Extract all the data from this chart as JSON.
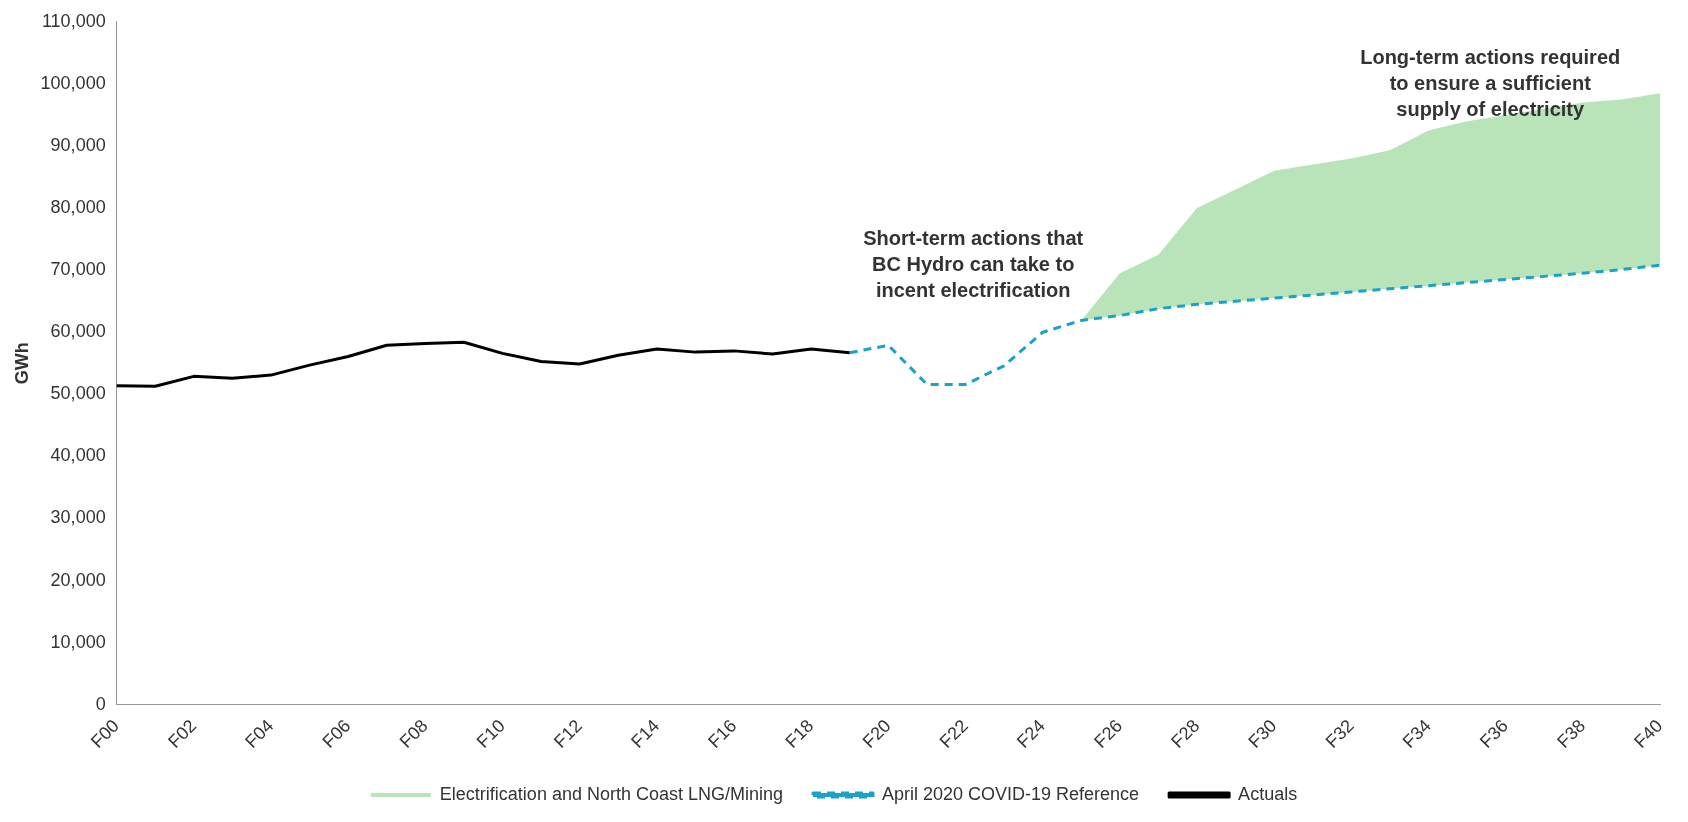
{
  "chart_data": {
    "type": "line",
    "ylabel": "GWh",
    "categories": [
      "F00",
      null,
      "F02",
      null,
      "F04",
      null,
      "F06",
      null,
      "F08",
      null,
      "F10",
      null,
      "F12",
      null,
      "F14",
      null,
      "F16",
      null,
      "F18",
      null,
      "F20",
      null,
      "F22",
      null,
      "F24",
      null,
      "F26",
      null,
      "F28",
      null,
      "F30",
      null,
      "F32",
      null,
      "F34",
      null,
      "F36",
      null,
      "F38",
      null,
      "F40"
    ],
    "series": [
      {
        "name": "Electrification and North Coast LNG/Mining",
        "type": "area",
        "color": "#a8dca8",
        "values": [
          null,
          null,
          null,
          null,
          null,
          null,
          null,
          null,
          null,
          null,
          null,
          null,
          null,
          null,
          null,
          null,
          null,
          null,
          null,
          null,
          null,
          null,
          null,
          null,
          null,
          61900,
          69500,
          72500,
          80000,
          83000,
          86000,
          87000,
          88000,
          89300,
          92500,
          94000,
          95000,
          96000,
          97000,
          97500,
          98500
        ]
      },
      {
        "name": "April 2020 COVID-19 Reference",
        "line_style": "dashed",
        "color": "#1aa3c8",
        "values": [
          null,
          null,
          null,
          null,
          null,
          null,
          null,
          null,
          null,
          null,
          null,
          null,
          null,
          null,
          null,
          null,
          null,
          null,
          null,
          56700,
          57900,
          51600,
          51600,
          54600,
          60000,
          61900,
          62700,
          63800,
          64500,
          65000,
          65500,
          66000,
          66500,
          67000,
          67500,
          68000,
          68500,
          69000,
          69500,
          70100,
          70800
        ]
      },
      {
        "name": "Actuals",
        "line_style": "solid",
        "color": "#000000",
        "values": [
          51400,
          51300,
          52900,
          52600,
          53100,
          54700,
          56100,
          57900,
          58200,
          58400,
          56600,
          55300,
          54900,
          56300,
          57300,
          56800,
          57000,
          56500,
          57300,
          56700,
          null,
          null,
          null,
          null,
          null,
          null,
          null,
          null,
          null,
          null,
          null,
          null,
          null,
          null,
          null,
          null,
          null,
          null,
          null,
          null,
          null
        ]
      }
    ],
    "ylim": [
      0,
      110000
    ],
    "yticks": [
      {
        "value": 0,
        "label": "0"
      },
      {
        "value": 10000,
        "label": "10,000"
      },
      {
        "value": 20000,
        "label": "20,000"
      },
      {
        "value": 30000,
        "label": "30,000"
      },
      {
        "value": 40000,
        "label": "40,000"
      },
      {
        "value": 50000,
        "label": "50,000"
      },
      {
        "value": 60000,
        "label": "60,000"
      },
      {
        "value": 70000,
        "label": "70,000"
      },
      {
        "value": 80000,
        "label": "80,000"
      },
      {
        "value": 90000,
        "label": "90,000"
      },
      {
        "value": 100000,
        "label": "100,000"
      },
      {
        "value": 110000,
        "label": "110,000"
      }
    ],
    "annotations": [
      "Short-term actions that\nBC Hydro can take to\nincent electrification",
      "Long-term actions required\nto ensure a sufficient\nsupply of electricity"
    ],
    "grid": false,
    "legend": "bottom",
    "marker": "none"
  }
}
